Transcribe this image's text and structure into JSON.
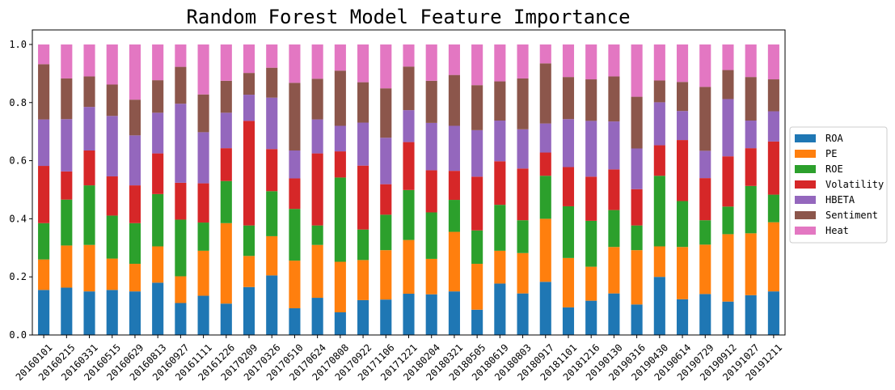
{
  "chart_data": {
    "type": "bar",
    "stacked": true,
    "title": "Random Forest Model Feature Importance",
    "xlabel": "",
    "ylabel": "",
    "ylim": [
      0,
      1.05
    ],
    "yticks": [
      "0.0",
      "0.2",
      "0.4",
      "0.6",
      "0.8",
      "1.0"
    ],
    "legend_position": "center-right outside",
    "grid": false,
    "categories": [
      "20160101",
      "20160215",
      "20160331",
      "20160515",
      "20160629",
      "20160813",
      "20160927",
      "20161111",
      "20161226",
      "20170209",
      "20170326",
      "20170510",
      "20170624",
      "20170808",
      "20170922",
      "20171106",
      "20171221",
      "20180204",
      "20180321",
      "20180505",
      "20180619",
      "20180803",
      "20180917",
      "20181101",
      "20181216",
      "20190130",
      "20190316",
      "20190430",
      "20190614",
      "20190729",
      "20190912",
      "20191027",
      "20191211"
    ],
    "series": [
      {
        "name": "ROA",
        "color": "#1f77b4",
        "values": [
          0.155,
          0.163,
          0.15,
          0.155,
          0.15,
          0.18,
          0.11,
          0.135,
          0.108,
          0.165,
          0.205,
          0.092,
          0.128,
          0.078,
          0.12,
          0.122,
          0.142,
          0.14,
          0.15,
          0.087,
          0.177,
          0.143,
          0.183,
          0.095,
          0.118,
          0.143,
          0.105,
          0.2,
          0.123,
          0.141,
          0.115,
          0.137,
          0.15
        ]
      },
      {
        "name": "PE",
        "color": "#ff7f0e",
        "values": [
          0.105,
          0.145,
          0.16,
          0.108,
          0.095,
          0.125,
          0.092,
          0.155,
          0.277,
          0.107,
          0.135,
          0.164,
          0.182,
          0.174,
          0.138,
          0.17,
          0.185,
          0.122,
          0.205,
          0.158,
          0.113,
          0.139,
          0.217,
          0.17,
          0.117,
          0.16,
          0.187,
          0.105,
          0.18,
          0.17,
          0.232,
          0.213,
          0.238
        ]
      },
      {
        "name": "ROE",
        "color": "#2ca02c",
        "values": [
          0.125,
          0.158,
          0.205,
          0.148,
          0.14,
          0.18,
          0.195,
          0.097,
          0.145,
          0.105,
          0.155,
          0.178,
          0.067,
          0.29,
          0.105,
          0.122,
          0.172,
          0.16,
          0.11,
          0.115,
          0.158,
          0.113,
          0.148,
          0.178,
          0.158,
          0.127,
          0.085,
          0.243,
          0.158,
          0.084,
          0.095,
          0.163,
          0.095
        ]
      },
      {
        "name": "Volatility",
        "color": "#d62728",
        "values": [
          0.197,
          0.097,
          0.12,
          0.135,
          0.13,
          0.14,
          0.127,
          0.135,
          0.113,
          0.36,
          0.145,
          0.105,
          0.248,
          0.09,
          0.22,
          0.105,
          0.165,
          0.145,
          0.1,
          0.185,
          0.15,
          0.178,
          0.08,
          0.135,
          0.152,
          0.14,
          0.125,
          0.105,
          0.21,
          0.145,
          0.173,
          0.13,
          0.183
        ]
      },
      {
        "name": "HBETA",
        "color": "#9467bd",
        "values": [
          0.16,
          0.18,
          0.15,
          0.208,
          0.172,
          0.14,
          0.272,
          0.176,
          0.122,
          0.09,
          0.177,
          0.096,
          0.117,
          0.088,
          0.148,
          0.16,
          0.11,
          0.163,
          0.155,
          0.16,
          0.14,
          0.135,
          0.1,
          0.165,
          0.192,
          0.165,
          0.14,
          0.148,
          0.1,
          0.094,
          0.197,
          0.095,
          0.104
        ]
      },
      {
        "name": "Sentiment",
        "color": "#8c564b",
        "values": [
          0.19,
          0.14,
          0.105,
          0.108,
          0.123,
          0.112,
          0.127,
          0.13,
          0.11,
          0.075,
          0.103,
          0.233,
          0.14,
          0.19,
          0.139,
          0.17,
          0.15,
          0.145,
          0.175,
          0.155,
          0.135,
          0.175,
          0.207,
          0.145,
          0.143,
          0.155,
          0.178,
          0.075,
          0.1,
          0.22,
          0.1,
          0.15,
          0.11
        ]
      },
      {
        "name": "Heat",
        "color": "#e377c2",
        "values": [
          0.068,
          0.117,
          0.11,
          0.138,
          0.19,
          0.123,
          0.077,
          0.172,
          0.125,
          0.098,
          0.08,
          0.132,
          0.118,
          0.09,
          0.13,
          0.151,
          0.076,
          0.125,
          0.105,
          0.14,
          0.127,
          0.117,
          0.065,
          0.112,
          0.12,
          0.11,
          0.18,
          0.124,
          0.129,
          0.146,
          0.088,
          0.112,
          0.12
        ]
      }
    ]
  }
}
